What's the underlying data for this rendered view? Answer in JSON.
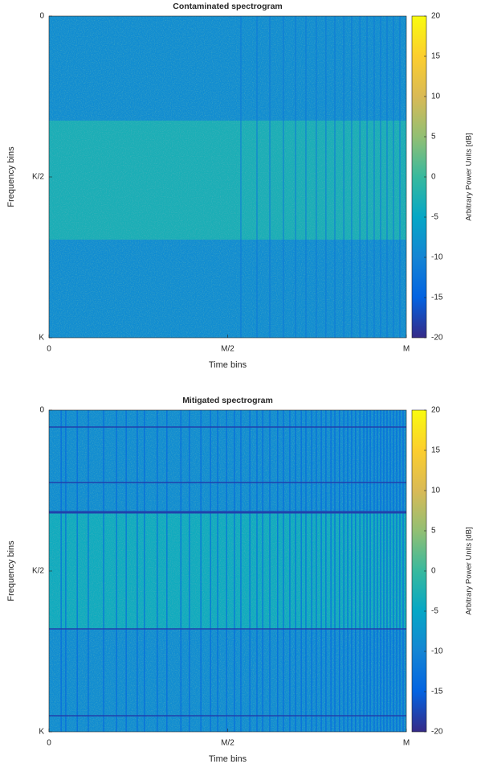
{
  "chart_data": [
    {
      "type": "heatmap",
      "title": "Contaminated spectrogram",
      "xlabel": "Time bins",
      "ylabel": "Frequency bins",
      "xlim": [
        0,
        1
      ],
      "xticks": [
        0,
        {
          "value": 0.5,
          "label": "M/2"
        },
        {
          "value": 1,
          "label": "M"
        }
      ],
      "ylim": [
        1,
        0
      ],
      "yticks": [
        0,
        {
          "value": 0.5,
          "label": "K/2"
        },
        {
          "value": 1,
          "label": "K"
        }
      ],
      "y_edges": [
        0,
        0.325,
        0.695,
        1
      ],
      "z": [
        -9,
        -3,
        -9
      ],
      "hline_y": [],
      "hline_value": -18,
      "vline_x": [
        0.537,
        0.582,
        0.618,
        0.656,
        0.69,
        0.719,
        0.748,
        0.775,
        0.8,
        0.825,
        0.847,
        0.87,
        0.89,
        0.91,
        0.928,
        0.946,
        0.964,
        0.982
      ],
      "vline_value": -12,
      "colormap": "parula",
      "clim": [
        -20,
        20
      ],
      "cticks": [
        -20,
        -15,
        -10,
        -5,
        0,
        5,
        10,
        15,
        20
      ],
      "colorbar_label": "Arbitrary Power Units [dB]"
    },
    {
      "type": "heatmap",
      "title": "Mitigated spectrogram",
      "xlabel": "Time bins",
      "ylabel": "Frequency bins",
      "xlim": [
        0,
        1
      ],
      "xticks": [
        0,
        {
          "value": 0.5,
          "label": "M/2"
        },
        {
          "value": 1,
          "label": "M"
        }
      ],
      "ylim": [
        1,
        0
      ],
      "yticks": [
        0,
        {
          "value": 0.5,
          "label": "K/2"
        },
        {
          "value": 1,
          "label": "K"
        }
      ],
      "y_edges": [
        0,
        0.32,
        0.68,
        1
      ],
      "z": [
        -9,
        -4,
        -9
      ],
      "hline_y": [
        0.0525,
        0.225,
        0.3175,
        0.68,
        0.95
      ],
      "hline_value": -18,
      "vline_x": [
        0.034,
        0.047,
        0.079,
        0.11,
        0.153,
        0.189,
        0.216,
        0.247,
        0.267,
        0.303,
        0.33,
        0.369,
        0.393,
        0.425,
        0.452,
        0.472,
        0.497,
        0.519,
        0.537,
        0.562,
        0.582,
        0.598,
        0.618,
        0.64,
        0.656,
        0.674,
        0.69,
        0.706,
        0.719,
        0.735,
        0.748,
        0.762,
        0.775,
        0.789,
        0.8,
        0.813,
        0.825,
        0.836,
        0.847,
        0.858,
        0.87,
        0.881,
        0.89,
        0.899,
        0.91,
        0.919,
        0.928,
        0.937,
        0.946,
        0.955,
        0.964,
        0.973,
        0.982,
        0.991
      ],
      "vline_value": -15,
      "colormap": "parula",
      "clim": [
        -20,
        20
      ],
      "cticks": [
        -20,
        -15,
        -10,
        -5,
        0,
        5,
        10,
        15,
        20
      ],
      "colorbar_label": "Arbitrary Power Units [dB]"
    }
  ]
}
